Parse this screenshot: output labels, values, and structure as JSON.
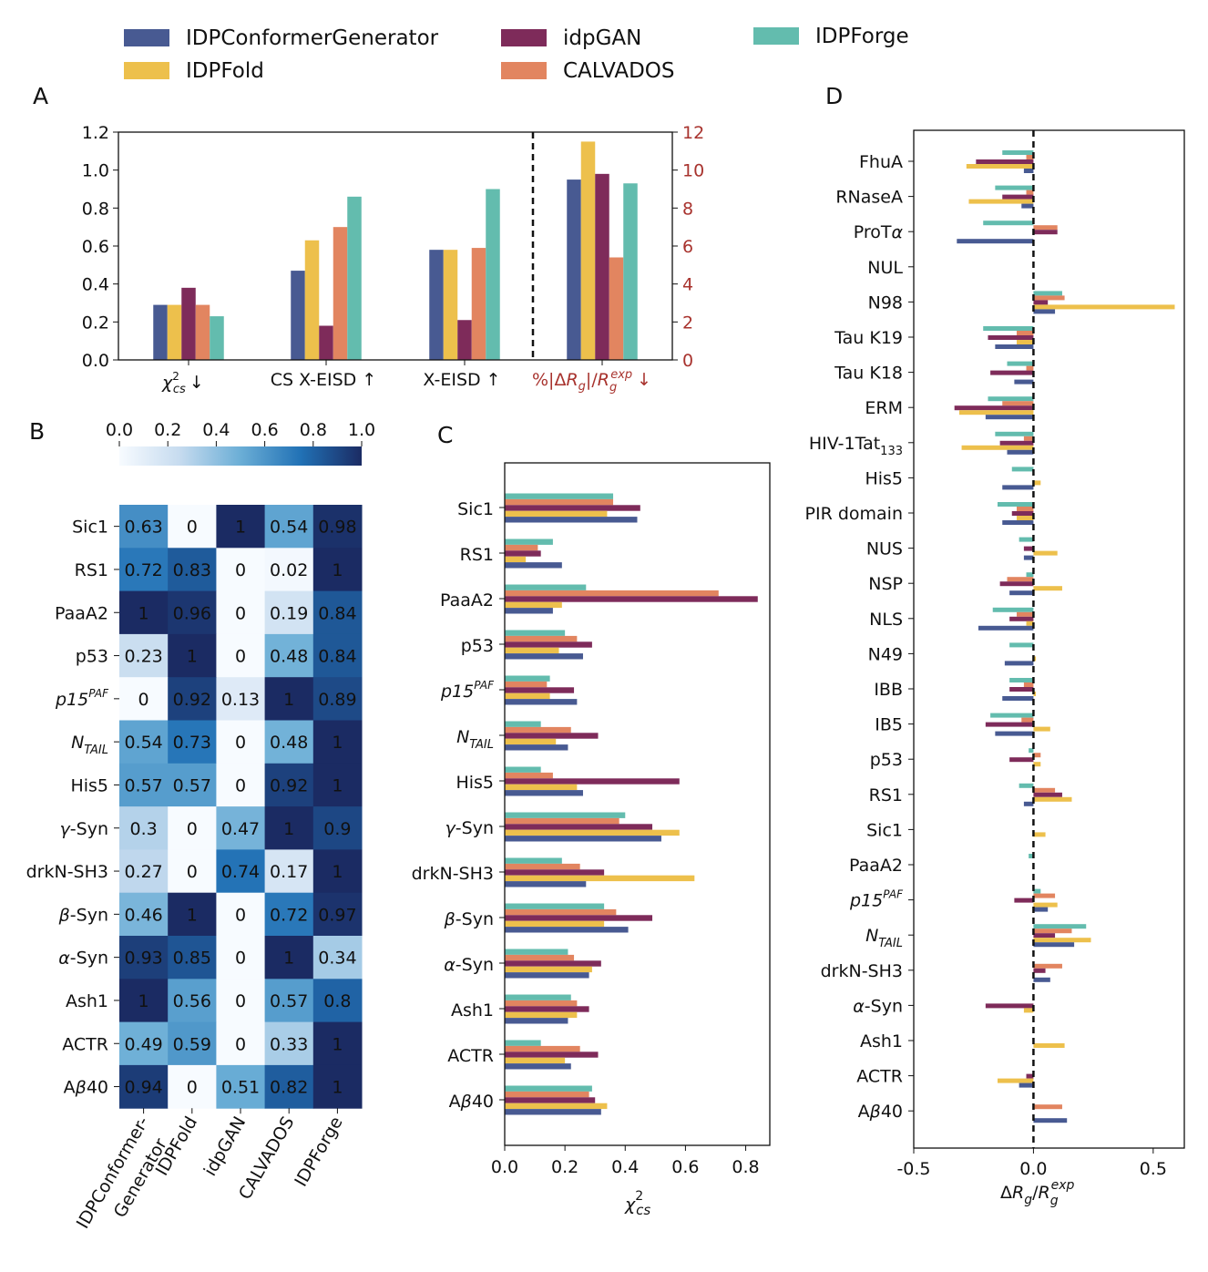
{
  "colors": {
    "IDPConformerGenerator": "#485a92",
    "IDPFold": "#edc04c",
    "idpGAN": "#7e2b5a",
    "CALVADOS": "#e28560",
    "IDPForge": "#63bcae",
    "right_axis": "#a8332e"
  },
  "legend": [
    "IDPConformerGenerator",
    "IDPFold",
    "idpGAN",
    "CALVADOS",
    "IDPForge"
  ],
  "panels": {
    "A": "A",
    "B": "B",
    "C": "C",
    "D": "D"
  },
  "chart_data": [
    {
      "panel": "A",
      "type": "bar",
      "categories": [
        "χ²cs ↓",
        "CS X-EISD ↑",
        "X-EISD ↑",
        "%|ΔRg|/Rg^exp ↓"
      ],
      "category_labels": {
        "c0_main": "χ",
        "c0_sup": "2",
        "c0_sub": "cs",
        "c0_arrow": "↓",
        "c1": "CS X-EISD  ↑",
        "c2": "X-EISD  ↑",
        "c3_a": "%|Δ",
        "c3_b": "R",
        "c3_c": "g",
        "c3_d": "|/",
        "c3_e": "R",
        "c3_f": "g",
        "c3_g": "exp",
        "c3_h": "↓"
      },
      "series": [
        {
          "name": "IDPConformerGenerator",
          "values": [
            0.29,
            0.47,
            0.58,
            0.95
          ]
        },
        {
          "name": "IDPFold",
          "values": [
            0.29,
            0.63,
            0.58,
            1.15
          ]
        },
        {
          "name": "idpGAN",
          "values": [
            0.38,
            0.18,
            0.21,
            0.98
          ]
        },
        {
          "name": "CALVADOS",
          "values": [
            0.29,
            0.7,
            0.59,
            0.54
          ]
        },
        {
          "name": "IDPForge",
          "values": [
            0.23,
            0.86,
            0.9,
            0.93
          ]
        }
      ],
      "ylim_left": [
        0,
        1.2
      ],
      "ylim_right": [
        0,
        12
      ],
      "yticks_left": [
        "0.0",
        "0.2",
        "0.4",
        "0.6",
        "0.8",
        "1.0",
        "1.2"
      ],
      "yticks_right": [
        "0",
        "2",
        "4",
        "6",
        "8",
        "10",
        "12"
      ],
      "note": "Last group is plotted against the right axis (0–12); values listed scaled to left axis."
    },
    {
      "panel": "B",
      "type": "heatmap",
      "rows": [
        "Sic1",
        "RS1",
        "PaaA2",
        "p53",
        "p15^PAF",
        "N_TAIL",
        "His5",
        "γ-Syn",
        "drkN-SH3",
        "β-Syn",
        "α-Syn",
        "Ash1",
        "ACTR",
        "Aβ40"
      ],
      "row_labels": [
        {
          "t": "Sic1"
        },
        {
          "t": "RS1"
        },
        {
          "t": "PaaA2"
        },
        {
          "t": "p53"
        },
        {
          "t": "p15",
          "sup": "PAF",
          "italic": true
        },
        {
          "t": "N",
          "sub": "TAIL",
          "italic": true
        },
        {
          "t": "His5"
        },
        {
          "g": "γ",
          "t": "-Syn"
        },
        {
          "t": "drkN-SH3"
        },
        {
          "g": "β",
          "t": "-Syn"
        },
        {
          "g": "α",
          "t": "-Syn"
        },
        {
          "t": "Ash1"
        },
        {
          "t": "ACTR"
        },
        {
          "t": "A",
          "g2": "β",
          "t2": "40"
        }
      ],
      "columns": [
        "IDPConformer-\nGenerator",
        "IDPFold",
        "idpGAN",
        "CALVADOS",
        "IDPForge"
      ],
      "column_labels": [
        [
          "IDPConformer-",
          "Generator"
        ],
        [
          "IDPFold"
        ],
        [
          "idpGAN"
        ],
        [
          "CALVADOS"
        ],
        [
          "IDPForge"
        ]
      ],
      "values": [
        [
          0.63,
          0,
          1,
          0.54,
          0.98
        ],
        [
          0.72,
          0.83,
          0,
          0.02,
          1
        ],
        [
          1,
          0.96,
          0,
          0.19,
          0.84
        ],
        [
          0.23,
          1,
          0,
          0.48,
          0.84
        ],
        [
          0,
          0.92,
          0.13,
          1,
          0.89
        ],
        [
          0.54,
          0.73,
          0,
          0.48,
          1
        ],
        [
          0.57,
          0.57,
          0,
          0.92,
          1
        ],
        [
          0.3,
          0,
          0.47,
          1,
          0.9
        ],
        [
          0.27,
          0,
          0.74,
          0.17,
          1
        ],
        [
          0.46,
          1,
          0,
          0.72,
          0.97
        ],
        [
          0.93,
          0.85,
          0,
          1,
          0.34
        ],
        [
          1,
          0.56,
          0,
          0.57,
          0.8
        ],
        [
          0.49,
          0.59,
          0,
          0.33,
          1
        ],
        [
          0.94,
          0,
          0.51,
          0.82,
          1
        ]
      ],
      "colorbar_ticks": [
        "0.0",
        "0.2",
        "0.4",
        "0.6",
        "0.8",
        "1.0"
      ],
      "colorbar_range": [
        0,
        1
      ]
    },
    {
      "panel": "C",
      "type": "bar",
      "orientation": "horizontal",
      "categories": [
        "Sic1",
        "RS1",
        "PaaA2",
        "p53",
        "p15^PAF",
        "N_TAIL",
        "His5",
        "γ-Syn",
        "drkN-SH3",
        "β-Syn",
        "α-Syn",
        "Ash1",
        "ACTR",
        "Aβ40"
      ],
      "series": [
        {
          "name": "IDPConformerGenerator",
          "values": [
            0.44,
            0.19,
            0.16,
            0.26,
            0.24,
            0.21,
            0.26,
            0.52,
            0.27,
            0.41,
            0.28,
            0.21,
            0.22,
            0.32
          ]
        },
        {
          "name": "IDPFold",
          "values": [
            0.34,
            0.07,
            0.19,
            0.18,
            0.15,
            0.17,
            0.24,
            0.58,
            0.63,
            0.33,
            0.29,
            0.24,
            0.2,
            0.34
          ]
        },
        {
          "name": "idpGAN",
          "values": [
            0.45,
            0.12,
            0.84,
            0.29,
            0.23,
            0.31,
            0.58,
            0.49,
            0.33,
            0.49,
            0.32,
            0.28,
            0.31,
            0.3
          ]
        },
        {
          "name": "CALVADOS",
          "values": [
            0.36,
            0.11,
            0.71,
            0.24,
            0.14,
            0.22,
            0.16,
            0.38,
            0.25,
            0.37,
            0.23,
            0.24,
            0.25,
            0.28
          ]
        },
        {
          "name": "IDPForge",
          "values": [
            0.36,
            0.16,
            0.27,
            0.2,
            0.15,
            0.12,
            0.12,
            0.4,
            0.19,
            0.33,
            0.21,
            0.22,
            0.12,
            0.29
          ]
        }
      ],
      "xlim": [
        0,
        0.88
      ],
      "xticks": [
        "0.0",
        "0.2",
        "0.4",
        "0.6",
        "0.8"
      ],
      "xlabel_main": "χ",
      "xlabel_sup": "2",
      "xlabel_sub": "cs"
    },
    {
      "panel": "D",
      "type": "bar",
      "orientation": "horizontal",
      "categories": [
        "FhuA",
        "RNaseA",
        "ProTα",
        "NUL",
        "N98",
        "Tau K19",
        "Tau K18",
        "ERM",
        "HIV-1Tat133",
        "His5",
        "PIR domain",
        "NUS",
        "NSP",
        "NLS",
        "N49",
        "IBB",
        "IB5",
        "p53",
        "RS1",
        "Sic1",
        "PaaA2",
        "p15^PAF",
        "N_TAIL",
        "drkN-SH3",
        "α-Syn",
        "Ash1",
        "ACTR",
        "Aβ40"
      ],
      "row_labels": [
        {
          "t": "FhuA"
        },
        {
          "t": "RNaseA"
        },
        {
          "t": "ProT",
          "g2": "α"
        },
        {
          "t": "NUL"
        },
        {
          "t": "N98"
        },
        {
          "t": "Tau K19"
        },
        {
          "t": "Tau K18"
        },
        {
          "t": "ERM"
        },
        {
          "t": "HIV-1Tat",
          "sub": "133"
        },
        {
          "t": "His5"
        },
        {
          "t": "PIR domain"
        },
        {
          "t": "NUS"
        },
        {
          "t": "NSP"
        },
        {
          "t": "NLS"
        },
        {
          "t": "N49"
        },
        {
          "t": "IBB"
        },
        {
          "t": "IB5"
        },
        {
          "t": "p53"
        },
        {
          "t": "RS1"
        },
        {
          "t": "Sic1"
        },
        {
          "t": "PaaA2"
        },
        {
          "t": "p15",
          "sup": "PAF",
          "italic": true
        },
        {
          "t": "N",
          "sub": "TAIL",
          "italic": true
        },
        {
          "t": "drkN-SH3"
        },
        {
          "g": "α",
          "t": "-Syn"
        },
        {
          "t": "Ash1"
        },
        {
          "t": "ACTR"
        },
        {
          "t": "A",
          "g2": "β",
          "t2": "40"
        }
      ],
      "series": [
        {
          "name": "IDPConformerGenerator",
          "values": [
            -0.04,
            -0.05,
            -0.32,
            0,
            0.09,
            -0.16,
            -0.08,
            -0.2,
            -0.11,
            -0.13,
            -0.13,
            -0.04,
            -0.1,
            -0.23,
            -0.12,
            -0.13,
            -0.16,
            0,
            -0.04,
            0,
            0,
            0.06,
            0.17,
            0.07,
            0,
            0,
            -0.06,
            0.14
          ]
        },
        {
          "name": "IDPFold",
          "values": [
            -0.28,
            -0.27,
            0,
            0,
            0.59,
            -0.07,
            0,
            -0.31,
            -0.3,
            0.03,
            -0.07,
            0.1,
            0.12,
            -0.03,
            0.01,
            0.01,
            0.07,
            0.03,
            0.16,
            0.05,
            0,
            0.1,
            0.24,
            0,
            -0.04,
            0.13,
            -0.15,
            0
          ]
        },
        {
          "name": "idpGAN",
          "values": [
            -0.24,
            -0.13,
            0.1,
            0,
            0.06,
            -0.19,
            -0.18,
            -0.33,
            -0.14,
            0,
            -0.09,
            -0.04,
            -0.14,
            -0.1,
            0,
            -0.1,
            -0.2,
            -0.1,
            0.12,
            0,
            0,
            -0.08,
            0.09,
            0.05,
            -0.2,
            0,
            -0.03,
            0
          ]
        },
        {
          "name": "CALVADOS",
          "values": [
            -0.03,
            -0.03,
            0.1,
            0,
            0.13,
            -0.07,
            -0.03,
            -0.13,
            -0.04,
            0,
            -0.07,
            0,
            -0.11,
            -0.07,
            0,
            -0.04,
            -0.05,
            0.03,
            0.09,
            0,
            0,
            0.09,
            0.16,
            0.12,
            0,
            0,
            0,
            0.12
          ]
        },
        {
          "name": "IDPForge",
          "values": [
            -0.13,
            -0.16,
            -0.21,
            0,
            0.12,
            -0.21,
            -0.11,
            -0.19,
            -0.16,
            -0.09,
            -0.15,
            -0.06,
            -0.03,
            -0.17,
            -0.1,
            -0.1,
            -0.18,
            -0.02,
            -0.06,
            0,
            -0.02,
            0.03,
            0.22,
            0,
            0,
            0,
            0,
            0
          ]
        }
      ],
      "xlim": [
        -0.5,
        0.63
      ],
      "xticks": [
        "-0.5",
        "0.0",
        "0.5"
      ],
      "xlabel": {
        "a": "Δ",
        "b": "R",
        "c": "g",
        "d": "/",
        "e": "R",
        "f": "g",
        "g": "exp"
      }
    }
  ]
}
